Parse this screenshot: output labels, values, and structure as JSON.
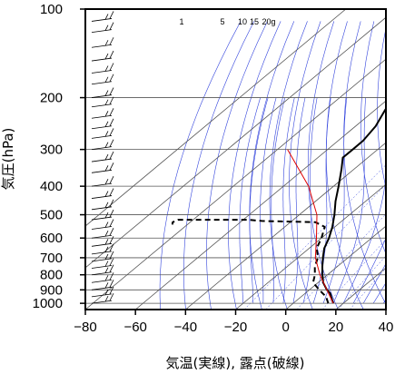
{
  "chart_data": {
    "type": "skew-t",
    "xlabel": "気温(実線), 露点(破線)",
    "ylabel": "気圧(hPa)",
    "xlim": [
      -80,
      40
    ],
    "ylim": [
      1050,
      100
    ],
    "y_scale": "log",
    "x_ticks": [
      "−80",
      "−60",
      "−40",
      "−20",
      "0",
      "20",
      "40"
    ],
    "y_ticks": [
      "100",
      "200",
      "300",
      "400",
      "500",
      "600",
      "700",
      "800",
      "900",
      "1000"
    ],
    "mixing_ratio_labels": [
      "1",
      "5",
      "10",
      "15",
      "20g"
    ],
    "grid": true,
    "colors": {
      "temperature": "#000000",
      "dewpoint": "#000000",
      "parcel": "#e00000",
      "adiabats": "#3344dd",
      "grid": "#555555",
      "frame": "#000000"
    },
    "series": [
      {
        "role": "temperature",
        "style": "solid",
        "values": [
          {
            "p": 1000,
            "t": 16
          },
          {
            "p": 975,
            "t": 14
          },
          {
            "p": 950,
            "t": 12
          },
          {
            "p": 925,
            "t": 10
          },
          {
            "p": 900,
            "t": 7
          },
          {
            "p": 850,
            "t": 2
          },
          {
            "p": 800,
            "t": -2
          },
          {
            "p": 750,
            "t": -6
          },
          {
            "p": 700,
            "t": -10
          },
          {
            "p": 650,
            "t": -14
          },
          {
            "p": 600,
            "t": -17
          },
          {
            "p": 550,
            "t": -21
          },
          {
            "p": 500,
            "t": -26
          },
          {
            "p": 450,
            "t": -32
          },
          {
            "p": 400,
            "t": -38
          },
          {
            "p": 350,
            "t": -45
          },
          {
            "p": 320,
            "t": -50
          },
          {
            "p": 300,
            "t": -50
          },
          {
            "p": 280,
            "t": -50
          },
          {
            "p": 250,
            "t": -52
          },
          {
            "p": 220,
            "t": -56
          },
          {
            "p": 200,
            "t": -58
          },
          {
            "p": 175,
            "t": -62
          },
          {
            "p": 150,
            "t": -65
          },
          {
            "p": 130,
            "t": -69
          },
          {
            "p": 120,
            "t": -72
          },
          {
            "p": 110,
            "t": -76
          },
          {
            "p": 100,
            "t": -79
          }
        ]
      },
      {
        "role": "dewpoint",
        "style": "dashed",
        "values": [
          {
            "p": 1000,
            "t": 14
          },
          {
            "p": 975,
            "t": 12
          },
          {
            "p": 950,
            "t": 10
          },
          {
            "p": 925,
            "t": 7
          },
          {
            "p": 900,
            "t": 4
          },
          {
            "p": 850,
            "t": -2
          },
          {
            "p": 800,
            "t": -5
          },
          {
            "p": 750,
            "t": -9
          },
          {
            "p": 700,
            "t": -12
          },
          {
            "p": 650,
            "t": -17
          },
          {
            "p": 600,
            "t": -20
          },
          {
            "p": 550,
            "t": -24
          },
          {
            "p": 530,
            "t": -30
          },
          {
            "p": 525,
            "t": -52
          },
          {
            "p": 520,
            "t": -58
          },
          {
            "p": 520,
            "t": -86
          },
          {
            "p": 530,
            "t": -87
          },
          {
            "p": 540,
            "t": -86
          }
        ]
      },
      {
        "role": "parcel",
        "style": "solid",
        "values": [
          {
            "p": 1000,
            "t": 16
          },
          {
            "p": 900,
            "t": 7
          },
          {
            "p": 800,
            "t": -3
          },
          {
            "p": 700,
            "t": -13
          },
          {
            "p": 600,
            "t": -22
          },
          {
            "p": 500,
            "t": -33
          },
          {
            "p": 400,
            "t": -50
          },
          {
            "p": 300,
            "t": -76
          }
        ]
      }
    ]
  }
}
